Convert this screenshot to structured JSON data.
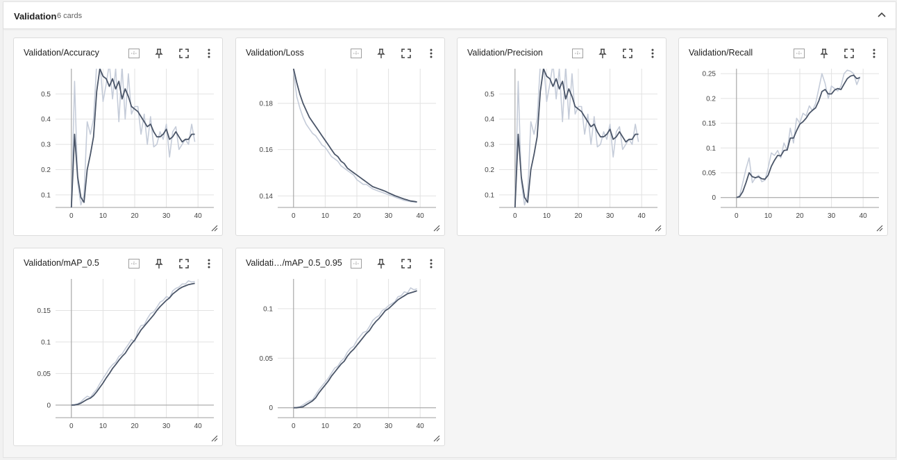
{
  "group": {
    "title": "Validation",
    "count": "6 cards"
  },
  "icons": {
    "collapse": "chevron-up-icon",
    "fit": "fit-domain-icon",
    "pin": "pin-icon",
    "fullscreen": "fullscreen-icon",
    "menu": "more-vert-icon",
    "resize": "resize-handle-icon"
  },
  "colors": {
    "smoothed": "#4a5568",
    "raw": "#c5ccd9",
    "grid": "#e2e2e2",
    "axis": "#9e9e9e"
  },
  "cards": [
    {
      "title": "Validation/Accuracy"
    },
    {
      "title": "Validation/Loss"
    },
    {
      "title": "Validation/Precision"
    },
    {
      "title": "Validation/Recall"
    },
    {
      "title": "Validation/mAP_0.5"
    },
    {
      "title": "Validati…/mAP_0.5_0.95"
    }
  ],
  "chart_data": [
    {
      "type": "line",
      "title": "Validation/Accuracy",
      "xlabel": "",
      "ylabel": "",
      "xlim": [
        -5,
        45
      ],
      "ylim": [
        0.05,
        0.6
      ],
      "xticks": [
        "0",
        "10",
        "20",
        "30",
        "40"
      ],
      "yticks": [
        "0.1",
        "0.2",
        "0.3",
        "0.4",
        "0.5"
      ],
      "x": [
        0,
        1,
        2,
        3,
        4,
        5,
        6,
        7,
        8,
        9,
        10,
        11,
        12,
        13,
        14,
        15,
        16,
        17,
        18,
        19,
        20,
        21,
        22,
        23,
        24,
        25,
        26,
        27,
        28,
        29,
        30,
        31,
        32,
        33,
        34,
        35,
        36,
        37,
        38,
        39
      ],
      "series": [
        {
          "values": [
            0.05,
            0.34,
            0.17,
            0.09,
            0.07,
            0.2,
            0.26,
            0.33,
            0.51,
            0.6,
            0.57,
            0.56,
            0.53,
            0.56,
            0.52,
            0.55,
            0.48,
            0.52,
            0.49,
            0.45,
            0.44,
            0.43,
            0.41,
            0.39,
            0.37,
            0.38,
            0.35,
            0.33,
            0.33,
            0.34,
            0.36,
            0.32,
            0.33,
            0.35,
            0.33,
            0.31,
            0.32,
            0.32,
            0.34,
            0.34
          ]
        },
        {
          "values": [
            0.05,
            0.55,
            0.15,
            0.06,
            0.1,
            0.39,
            0.34,
            0.4,
            0.62,
            0.63,
            0.47,
            0.54,
            0.62,
            0.48,
            0.6,
            0.39,
            0.61,
            0.4,
            0.58,
            0.42,
            0.45,
            0.45,
            0.34,
            0.42,
            0.3,
            0.41,
            0.29,
            0.3,
            0.35,
            0.32,
            0.38,
            0.25,
            0.35,
            0.37,
            0.28,
            0.3,
            0.32,
            0.3,
            0.38,
            0.31
          ]
        }
      ]
    },
    {
      "type": "line",
      "title": "Validation/Loss",
      "xlabel": "",
      "ylabel": "",
      "xlim": [
        -5,
        45
      ],
      "ylim": [
        0.135,
        0.195
      ],
      "xticks": [
        "0",
        "10",
        "20",
        "30",
        "40"
      ],
      "yticks": [
        "0.14",
        "0.16",
        "0.18"
      ],
      "x": [
        0,
        1,
        2,
        3,
        4,
        5,
        6,
        7,
        8,
        9,
        10,
        11,
        12,
        13,
        14,
        15,
        16,
        17,
        18,
        19,
        20,
        21,
        22,
        23,
        24,
        25,
        26,
        27,
        28,
        29,
        30,
        31,
        32,
        33,
        34,
        35,
        36,
        37,
        38,
        39
      ],
      "series": [
        {
          "values": [
            0.195,
            0.189,
            0.184,
            0.18,
            0.177,
            0.174,
            0.172,
            0.17,
            0.168,
            0.166,
            0.164,
            0.162,
            0.16,
            0.158,
            0.157,
            0.155,
            0.154,
            0.152,
            0.151,
            0.15,
            0.149,
            0.148,
            0.147,
            0.146,
            0.145,
            0.144,
            0.1435,
            0.143,
            0.1425,
            0.142,
            0.1413,
            0.1407,
            0.1401,
            0.1396,
            0.1391,
            0.1386,
            0.1382,
            0.1378,
            0.1376,
            0.1374
          ]
        },
        {
          "values": [
            0.194,
            0.183,
            0.178,
            0.174,
            0.171,
            0.169,
            0.167,
            0.166,
            0.164,
            0.162,
            0.161,
            0.159,
            0.157,
            0.156,
            0.155,
            0.153,
            0.152,
            0.151,
            0.15,
            0.149,
            0.147,
            0.146,
            0.145,
            0.145,
            0.144,
            0.143,
            0.1425,
            0.142,
            0.1415,
            0.141,
            0.1405,
            0.14,
            0.1395,
            0.139,
            0.1385,
            0.138,
            0.1378,
            0.1375,
            0.1374,
            0.1372
          ]
        }
      ]
    },
    {
      "type": "line",
      "title": "Validation/Precision",
      "xlabel": "",
      "ylabel": "",
      "xlim": [
        -5,
        45
      ],
      "ylim": [
        0.05,
        0.6
      ],
      "xticks": [
        "0",
        "10",
        "20",
        "30",
        "40"
      ],
      "yticks": [
        "0.1",
        "0.2",
        "0.3",
        "0.4",
        "0.5"
      ],
      "x": [
        0,
        1,
        2,
        3,
        4,
        5,
        6,
        7,
        8,
        9,
        10,
        11,
        12,
        13,
        14,
        15,
        16,
        17,
        18,
        19,
        20,
        21,
        22,
        23,
        24,
        25,
        26,
        27,
        28,
        29,
        30,
        31,
        32,
        33,
        34,
        35,
        36,
        37,
        38,
        39
      ],
      "series": [
        {
          "values": [
            0.05,
            0.34,
            0.17,
            0.09,
            0.07,
            0.2,
            0.26,
            0.33,
            0.51,
            0.6,
            0.57,
            0.56,
            0.53,
            0.56,
            0.52,
            0.55,
            0.48,
            0.52,
            0.49,
            0.45,
            0.44,
            0.43,
            0.41,
            0.39,
            0.37,
            0.38,
            0.35,
            0.33,
            0.33,
            0.34,
            0.36,
            0.32,
            0.33,
            0.35,
            0.33,
            0.31,
            0.32,
            0.32,
            0.34,
            0.34
          ]
        },
        {
          "values": [
            0.05,
            0.55,
            0.15,
            0.06,
            0.1,
            0.39,
            0.34,
            0.4,
            0.62,
            0.63,
            0.47,
            0.54,
            0.62,
            0.48,
            0.6,
            0.39,
            0.61,
            0.4,
            0.58,
            0.42,
            0.45,
            0.45,
            0.34,
            0.42,
            0.3,
            0.41,
            0.29,
            0.3,
            0.35,
            0.32,
            0.38,
            0.25,
            0.35,
            0.37,
            0.28,
            0.3,
            0.32,
            0.3,
            0.38,
            0.31
          ]
        }
      ]
    },
    {
      "type": "line",
      "title": "Validation/Recall",
      "xlabel": "",
      "ylabel": "",
      "xlim": [
        -5,
        45
      ],
      "ylim": [
        -0.02,
        0.26
      ],
      "xticks": [
        "0",
        "10",
        "20",
        "30",
        "40"
      ],
      "yticks": [
        "0",
        "0.05",
        "0.1",
        "0.15",
        "0.2",
        "0.25"
      ],
      "x": [
        0,
        1,
        2,
        3,
        4,
        5,
        6,
        7,
        8,
        9,
        10,
        11,
        12,
        13,
        14,
        15,
        16,
        17,
        18,
        19,
        20,
        21,
        22,
        23,
        24,
        25,
        26,
        27,
        28,
        29,
        30,
        31,
        32,
        33,
        34,
        35,
        36,
        37,
        38,
        39
      ],
      "series": [
        {
          "values": [
            0,
            0.002,
            0.012,
            0.03,
            0.05,
            0.042,
            0.04,
            0.042,
            0.038,
            0.037,
            0.045,
            0.063,
            0.075,
            0.085,
            0.084,
            0.095,
            0.096,
            0.12,
            0.12,
            0.135,
            0.148,
            0.153,
            0.16,
            0.17,
            0.176,
            0.181,
            0.195,
            0.214,
            0.218,
            0.209,
            0.209,
            0.217,
            0.22,
            0.218,
            0.229,
            0.24,
            0.245,
            0.247,
            0.24,
            0.242
          ]
        },
        {
          "values": [
            0,
            0.004,
            0.03,
            0.058,
            0.08,
            0.03,
            0.04,
            0.045,
            0.032,
            0.035,
            0.06,
            0.09,
            0.085,
            0.095,
            0.08,
            0.11,
            0.095,
            0.14,
            0.11,
            0.16,
            0.15,
            0.17,
            0.165,
            0.185,
            0.175,
            0.19,
            0.22,
            0.25,
            0.23,
            0.2,
            0.225,
            0.22,
            0.215,
            0.225,
            0.25,
            0.257,
            0.255,
            0.25,
            0.228,
            0.244
          ]
        }
      ]
    },
    {
      "type": "line",
      "title": "Validation/mAP_0.5",
      "xlabel": "",
      "ylabel": "",
      "xlim": [
        -5,
        45
      ],
      "ylim": [
        -0.02,
        0.2
      ],
      "xticks": [
        "0",
        "10",
        "20",
        "30",
        "40"
      ],
      "yticks": [
        "0",
        "0.05",
        "0.1",
        "0.15"
      ],
      "x": [
        0,
        1,
        2,
        3,
        4,
        5,
        6,
        7,
        8,
        9,
        10,
        11,
        12,
        13,
        14,
        15,
        16,
        17,
        18,
        19,
        20,
        21,
        22,
        23,
        24,
        25,
        26,
        27,
        28,
        29,
        30,
        31,
        32,
        33,
        34,
        35,
        36,
        37,
        38,
        39
      ],
      "series": [
        {
          "values": [
            0,
            0,
            0.001,
            0.003,
            0.006,
            0.009,
            0.011,
            0.015,
            0.021,
            0.028,
            0.035,
            0.043,
            0.05,
            0.058,
            0.064,
            0.071,
            0.077,
            0.082,
            0.09,
            0.097,
            0.103,
            0.111,
            0.119,
            0.125,
            0.131,
            0.137,
            0.143,
            0.15,
            0.156,
            0.161,
            0.166,
            0.17,
            0.176,
            0.18,
            0.184,
            0.187,
            0.189,
            0.191,
            0.192,
            0.193
          ]
        },
        {
          "values": [
            0,
            0.001,
            0.002,
            0.005,
            0.01,
            0.014,
            0.012,
            0.019,
            0.025,
            0.034,
            0.042,
            0.05,
            0.058,
            0.064,
            0.068,
            0.077,
            0.081,
            0.089,
            0.096,
            0.104,
            0.1,
            0.118,
            0.126,
            0.127,
            0.137,
            0.145,
            0.148,
            0.155,
            0.163,
            0.166,
            0.172,
            0.17,
            0.181,
            0.185,
            0.187,
            0.192,
            0.192,
            0.197,
            0.195,
            0.196
          ]
        }
      ]
    },
    {
      "type": "line",
      "title": "Validati…/mAP_0.5_0.95",
      "xlabel": "",
      "ylabel": "",
      "xlim": [
        -5,
        45
      ],
      "ylim": [
        -0.01,
        0.13
      ],
      "xticks": [
        "0",
        "10",
        "20",
        "30",
        "40"
      ],
      "yticks": [
        "0",
        "0.05",
        "0.1"
      ],
      "x": [
        0,
        1,
        2,
        3,
        4,
        5,
        6,
        7,
        8,
        9,
        10,
        11,
        12,
        13,
        14,
        15,
        16,
        17,
        18,
        19,
        20,
        21,
        22,
        23,
        24,
        25,
        26,
        27,
        28,
        29,
        30,
        31,
        32,
        33,
        34,
        35,
        36,
        37,
        38,
        39
      ],
      "series": [
        {
          "values": [
            0,
            0,
            0.0005,
            0.001,
            0.003,
            0.005,
            0.007,
            0.01,
            0.015,
            0.019,
            0.023,
            0.027,
            0.032,
            0.036,
            0.04,
            0.044,
            0.047,
            0.052,
            0.056,
            0.059,
            0.063,
            0.067,
            0.071,
            0.075,
            0.078,
            0.083,
            0.087,
            0.09,
            0.094,
            0.098,
            0.1,
            0.103,
            0.106,
            0.109,
            0.111,
            0.113,
            0.115,
            0.116,
            0.117,
            0.118
          ]
        },
        {
          "values": [
            0,
            0.0005,
            0.001,
            0.003,
            0.005,
            0.007,
            0.008,
            0.013,
            0.018,
            0.022,
            0.026,
            0.03,
            0.035,
            0.04,
            0.042,
            0.047,
            0.05,
            0.056,
            0.06,
            0.062,
            0.068,
            0.072,
            0.076,
            0.077,
            0.082,
            0.088,
            0.091,
            0.093,
            0.098,
            0.1,
            0.103,
            0.105,
            0.107,
            0.112,
            0.113,
            0.117,
            0.116,
            0.121,
            0.119,
            0.12
          ]
        }
      ]
    }
  ]
}
